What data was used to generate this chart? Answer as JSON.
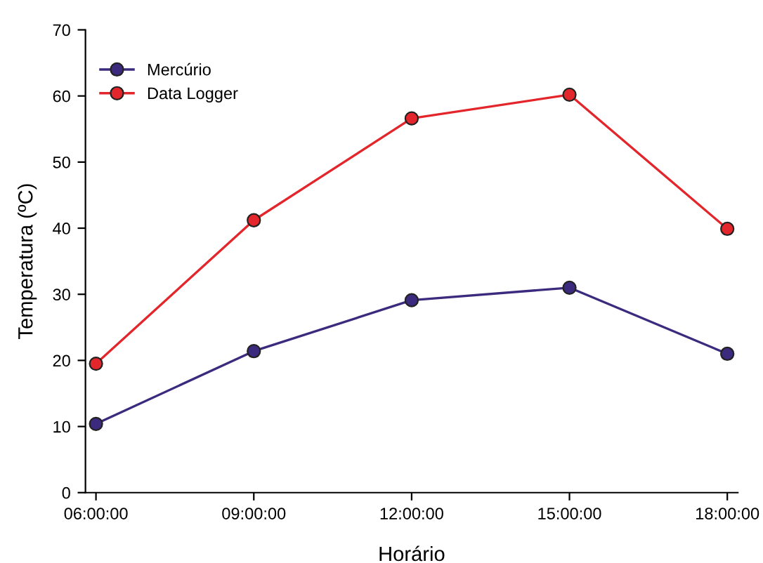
{
  "chart_data": {
    "type": "line",
    "xlabel": "Horário",
    "ylabel": "Temperatura (ºC)",
    "x": [
      6,
      9,
      12,
      15,
      18
    ],
    "series": [
      {
        "name": "Mercúrio",
        "color": "#3b2a7e",
        "values": [
          10.4,
          21.4,
          29.1,
          31.0,
          21.0
        ]
      },
      {
        "name": "Data Logger",
        "color": "#e3262b",
        "values": [
          19.5,
          41.2,
          56.6,
          60.2,
          39.9
        ]
      }
    ],
    "xlim": [
      5.8,
      18.2
    ],
    "xticks": [
      {
        "value": 6,
        "label": "06:00:00"
      },
      {
        "value": 9,
        "label": "09:00:00"
      },
      {
        "value": 12,
        "label": "12:00:00"
      },
      {
        "value": 15,
        "label": "15:00:00"
      },
      {
        "value": 18,
        "label": "18:00:00"
      }
    ],
    "ylim": [
      0,
      70
    ],
    "yticks": [
      0,
      10,
      20,
      30,
      40,
      50,
      60,
      70
    ],
    "grid": false,
    "legend": "top left",
    "marker": "circle",
    "line_style": "solid"
  }
}
